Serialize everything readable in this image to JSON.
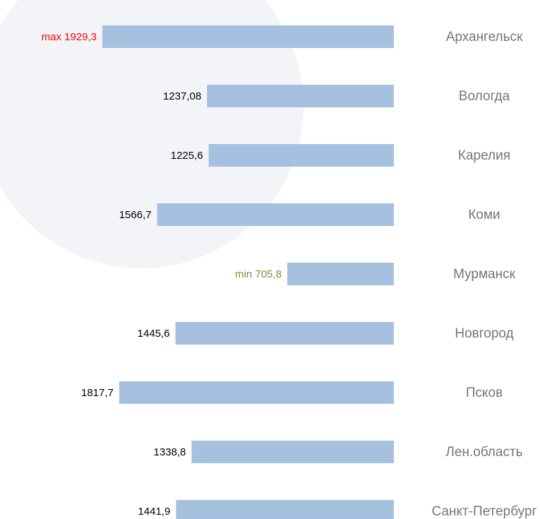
{
  "chart_data": {
    "type": "bar",
    "orientation": "horizontal",
    "categories": [
      "Архангельск",
      "Вологда",
      "Карелия",
      "Коми",
      "Мурманск",
      "Новгород",
      "Псков",
      "Лен.область",
      "Санкт-Петербург"
    ],
    "values": [
      1929.3,
      1237.08,
      1225.6,
      1566.7,
      705.8,
      1445.6,
      1817.7,
      1338.8,
      1441.9
    ],
    "value_labels": [
      "max 1929,3",
      "1237,08",
      "1225,6",
      "1566,7",
      "min 705,8",
      "1445,6",
      "1817,7",
      "1338,8",
      "1441,9"
    ],
    "color": "#a6c1df",
    "label_color": "#000000",
    "max_label_color": "#ff0000",
    "min_label_color": "#76923c"
  }
}
